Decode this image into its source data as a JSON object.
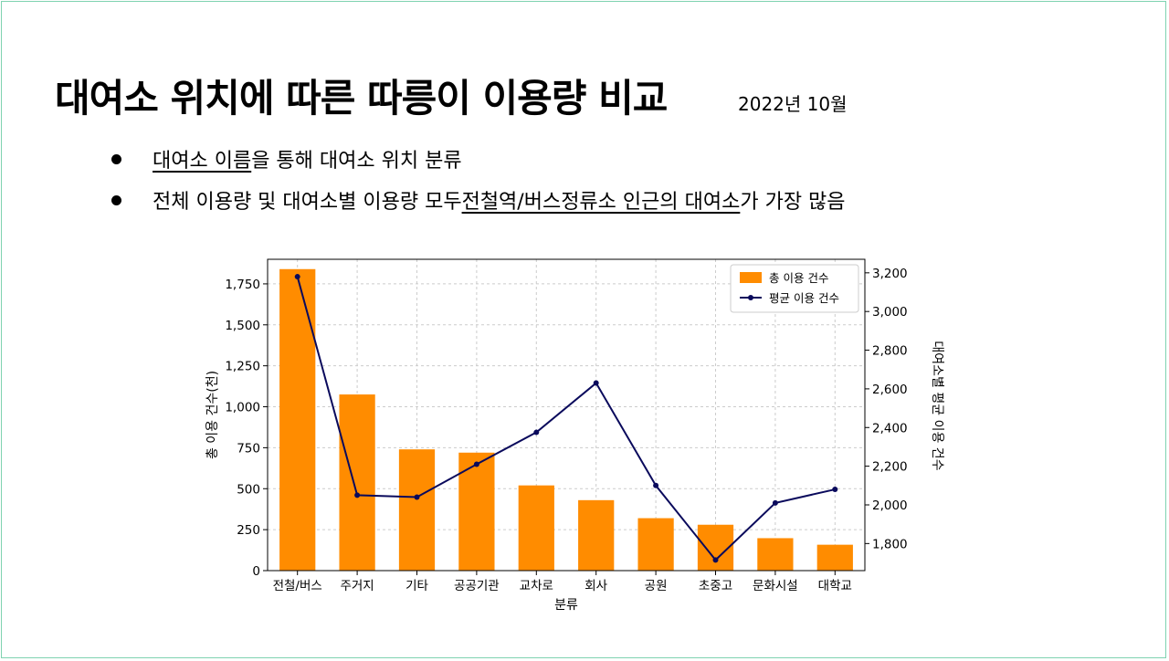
{
  "slide": {
    "title": "대여소 위치에 따른 따릉이 이용량 비교",
    "date": "2022년 10월",
    "bullet1": {
      "underlined": "대여소 이름",
      "rest": "을 통해 대여소 위치 분류"
    },
    "bullet2": {
      "pre": "전체 이용량 및 대여소별 이용량 모두 ",
      "underlined": "전철역/버스정류소 인근의 대여소",
      "post": "가 가장 많음"
    }
  },
  "chart_data": {
    "type": "bar",
    "categories": [
      "전철/버스",
      "주거지",
      "기타",
      "공공기관",
      "교차로",
      "회사",
      "공원",
      "초중고",
      "문화시설",
      "대학교"
    ],
    "series": [
      {
        "name": "총 이용 건수",
        "axis": "left",
        "kind": "bar",
        "color": "#ff8c00",
        "values": [
          1840,
          1075,
          740,
          720,
          520,
          430,
          320,
          280,
          198,
          158
        ]
      },
      {
        "name": "평균 이용 건수",
        "axis": "right",
        "kind": "line",
        "color": "#0a0a5c",
        "values": [
          3180,
          2050,
          2040,
          2210,
          2375,
          2630,
          2100,
          1715,
          2010,
          2080
        ]
      }
    ],
    "xlabel": "분류",
    "ylabel": "총 이용 건수(천)",
    "y2label": "대여소별 평균 이용 건수",
    "ylim": [
      0,
      1900
    ],
    "y2lim": [
      1660,
      3270
    ],
    "yticks": [
      "0",
      "250",
      "500",
      "750",
      "1,000",
      "1,250",
      "1,500",
      "1,750"
    ],
    "y2ticks": [
      "1,800",
      "2,000",
      "2,200",
      "2,400",
      "2,600",
      "2,800",
      "3,000",
      "3,200"
    ],
    "grid": true,
    "legend_position": "top-right"
  }
}
